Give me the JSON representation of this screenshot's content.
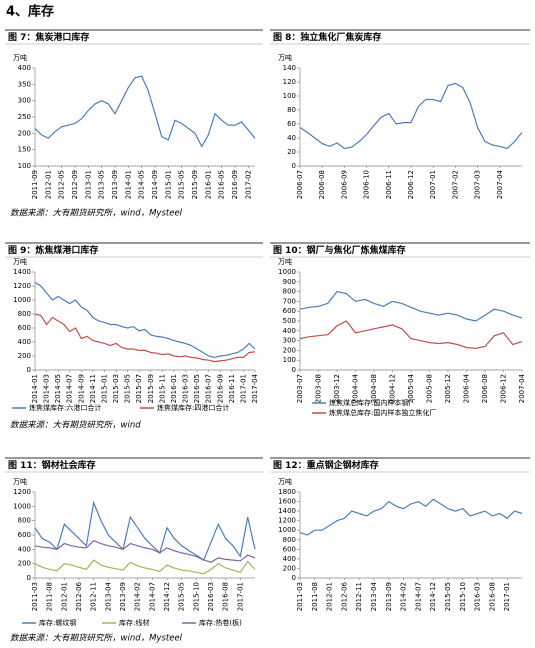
{
  "section_title": "4、库存",
  "sources": [
    "数据来源：大有期货研究所，wind，Mysteel",
    "数据来源：大有期货研究所，wind",
    "数据来源：大有期货研究所，wind，Mysteel"
  ],
  "chart_data": [
    {
      "type": "line",
      "title": "图 7：焦炭港口库存",
      "y_label": "万吨",
      "categories": [
        "2011-09",
        null,
        "2012-01",
        null,
        "2012-05",
        null,
        "2012-09",
        null,
        "2013-01",
        null,
        "2013-05",
        null,
        "2013-09",
        null,
        "2014-01",
        null,
        "2014-05",
        null,
        "2014-09",
        null,
        "2015-01",
        null,
        "2015-05",
        null,
        "2015-09",
        null,
        "2016-01",
        null,
        "2016-05",
        null,
        "2016-09",
        null,
        "2017-02",
        null
      ],
      "values": [
        215,
        195,
        185,
        205,
        220,
        225,
        230,
        245,
        270,
        290,
        300,
        290,
        260,
        300,
        340,
        370,
        375,
        330,
        260,
        190,
        180,
        240,
        230,
        215,
        200,
        160,
        195,
        260,
        240,
        225,
        225,
        235,
        210,
        185
      ],
      "color": "#4a7ebb",
      "ylim": [
        100,
        400
      ],
      "yticks": [
        100,
        150,
        200,
        250,
        300,
        350,
        400
      ],
      "grid": false
    },
    {
      "type": "line",
      "title": "图 8：独立焦化厂焦炭库存",
      "y_label": "万吨",
      "categories": [
        "2006-07",
        null,
        null,
        "2006-08",
        null,
        null,
        "2006-09",
        null,
        null,
        "2006-10",
        null,
        null,
        "2006-11",
        null,
        null,
        "2006-12",
        null,
        null,
        "2007-01",
        null,
        null,
        "2007-02",
        null,
        null,
        "2007-03",
        null,
        null,
        "2007-04",
        null,
        null,
        null
      ],
      "values": [
        55,
        48,
        40,
        32,
        28,
        33,
        25,
        27,
        35,
        45,
        58,
        70,
        75,
        60,
        62,
        62,
        85,
        95,
        95,
        92,
        115,
        118,
        112,
        90,
        55,
        35,
        30,
        28,
        25,
        35,
        48
      ],
      "color": "#4a7ebb",
      "ylim": [
        0,
        140
      ],
      "yticks": [
        0,
        20,
        40,
        60,
        80,
        100,
        120,
        140
      ],
      "grid": false
    },
    {
      "type": "line",
      "title": "图 9：炼焦煤港口库存",
      "y_label": "万吨",
      "categories": [
        "2014-01",
        null,
        "2014-03",
        null,
        "2014-05",
        null,
        "2014-07",
        null,
        "2014-09",
        null,
        "2014-11",
        null,
        "2015-01",
        null,
        "2015-03",
        null,
        "2015-05",
        null,
        "2015-07",
        null,
        "2015-09",
        null,
        "2015-11",
        null,
        "2016-01",
        null,
        "2016-03",
        null,
        "2016-05",
        null,
        "2016-07",
        null,
        "2016-09",
        null,
        "2016-11",
        null,
        "2017-01",
        null,
        "2017-04"
      ],
      "series": [
        {
          "name": "炼焦煤库存:六港口合计",
          "color": "#4a7ebb",
          "values": [
            1250,
            1200,
            1100,
            1000,
            1050,
            1000,
            950,
            1000,
            900,
            850,
            750,
            700,
            680,
            650,
            650,
            620,
            600,
            620,
            560,
            580,
            500,
            480,
            470,
            450,
            420,
            400,
            380,
            350,
            300,
            250,
            200,
            180,
            200,
            210,
            230,
            250,
            300,
            380,
            300
          ]
        },
        {
          "name": "炼焦煤库存:四港口合计",
          "color": "#c0504d",
          "values": [
            800,
            780,
            650,
            750,
            700,
            650,
            550,
            600,
            450,
            480,
            420,
            400,
            380,
            350,
            380,
            320,
            300,
            300,
            280,
            280,
            250,
            240,
            220,
            230,
            200,
            190,
            200,
            180,
            170,
            150,
            140,
            120,
            130,
            140,
            160,
            180,
            180,
            250,
            260
          ]
        }
      ],
      "ylim": [
        0,
        1400
      ],
      "yticks": [
        0,
        200,
        400,
        600,
        800,
        1000,
        1200,
        1400
      ],
      "grid": false
    },
    {
      "type": "line",
      "title": "图 10：钢厂与焦化厂炼焦煤库存",
      "y_label": "万吨",
      "categories": [
        "2003-07",
        null,
        "2003-08",
        null,
        "2003-12",
        null,
        "2004-04",
        null,
        "2004-08",
        null,
        "2004-12",
        null,
        "2005-04",
        null,
        "2005-08",
        null,
        "2005-12",
        null,
        "2006-04",
        null,
        "2006-08",
        null,
        "2006-12",
        null,
        "2007-04"
      ],
      "series": [
        {
          "name": "炼焦煤总库存:国内样本钢厂",
          "color": "#4a7ebb",
          "values": [
            620,
            640,
            650,
            680,
            800,
            780,
            700,
            720,
            680,
            650,
            700,
            680,
            640,
            600,
            580,
            560,
            580,
            560,
            520,
            500,
            560,
            620,
            600,
            560,
            530
          ]
        },
        {
          "name": "炼焦煤总库存:国内样本独立焦化厂",
          "color": "#c0504d",
          "values": [
            320,
            340,
            350,
            360,
            450,
            500,
            380,
            400,
            420,
            440,
            460,
            420,
            320,
            300,
            280,
            270,
            280,
            260,
            230,
            220,
            240,
            350,
            380,
            260,
            290
          ]
        }
      ],
      "ylim": [
        0,
        1000
      ],
      "yticks": [
        0,
        100,
        200,
        300,
        400,
        500,
        600,
        700,
        800,
        900,
        1000
      ],
      "grid": false
    },
    {
      "type": "line",
      "title": "图 11：钢材社会库存",
      "y_label": "万吨",
      "categories": [
        "2011-03",
        null,
        "2011-08",
        null,
        "2012-01",
        null,
        "2012-06",
        null,
        "2012-11",
        null,
        "2013-04",
        null,
        "2013-09",
        null,
        "2014-02",
        null,
        "2014-07",
        null,
        "2014-12",
        null,
        "2015-05",
        null,
        "2015-10",
        null,
        "2016-03",
        null,
        "2016-08",
        null,
        "2017-01",
        null,
        null
      ],
      "series": [
        {
          "name": "库存:螺纹钢",
          "color": "#4a7ebb",
          "values": [
            700,
            550,
            500,
            400,
            750,
            650,
            550,
            450,
            1050,
            800,
            600,
            500,
            400,
            850,
            700,
            550,
            450,
            350,
            700,
            550,
            450,
            380,
            320,
            250,
            500,
            750,
            550,
            450,
            300,
            850,
            400
          ]
        },
        {
          "name": "库存:线材",
          "color": "#9bbb59",
          "values": [
            200,
            150,
            120,
            100,
            200,
            180,
            150,
            120,
            250,
            180,
            150,
            130,
            110,
            220,
            170,
            140,
            120,
            90,
            180,
            140,
            110,
            100,
            80,
            60,
            120,
            200,
            140,
            110,
            80,
            230,
            120
          ]
        },
        {
          "name": "库存:热卷(板)",
          "color": "#8064a2",
          "values": [
            450,
            430,
            420,
            400,
            480,
            450,
            430,
            420,
            520,
            480,
            450,
            430,
            400,
            480,
            450,
            420,
            400,
            350,
            420,
            380,
            350,
            330,
            300,
            250,
            220,
            280,
            260,
            250,
            240,
            320,
            280
          ]
        }
      ],
      "ylim": [
        0,
        1200
      ],
      "yticks": [
        0,
        200,
        400,
        600,
        800,
        1000,
        1200
      ],
      "grid": false
    },
    {
      "type": "line",
      "title": "图 12：重点钢企钢材库存",
      "y_label": "万吨",
      "categories": [
        "2011-03",
        null,
        "2011-08",
        null,
        "2012-01",
        null,
        "2012-06",
        null,
        "2012-11",
        null,
        "2013-04",
        null,
        "2013-09",
        null,
        "2014-02",
        null,
        "2014-07",
        null,
        "2014-12",
        null,
        "2015-05",
        null,
        "2015-10",
        null,
        "2016-03",
        null,
        "2016-08",
        null,
        "2017-01",
        null,
        null
      ],
      "values": [
        950,
        900,
        1000,
        1000,
        1100,
        1200,
        1250,
        1400,
        1350,
        1300,
        1400,
        1450,
        1600,
        1500,
        1450,
        1550,
        1600,
        1500,
        1650,
        1550,
        1450,
        1400,
        1450,
        1300,
        1350,
        1400,
        1300,
        1350,
        1250,
        1400,
        1350
      ],
      "color": "#4a7ebb",
      "ylim": [
        0,
        1800
      ],
      "yticks": [
        0,
        200,
        400,
        600,
        800,
        1000,
        1200,
        1400,
        1600,
        1800
      ],
      "grid": false
    }
  ]
}
